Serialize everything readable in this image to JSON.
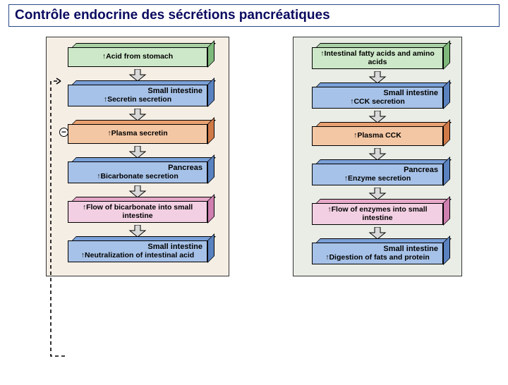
{
  "title": "Contrôle endocrine des sécrétions pancréatiques",
  "colors": {
    "green_t": "#a8d0a4",
    "green_f": "#cde8c8",
    "green_s": "#7fb97b",
    "blue_t": "#7aa0d8",
    "blue_f": "#a7c2e8",
    "blue_s": "#5a82c0",
    "orange_t": "#e8a070",
    "orange_f": "#f4c7a4",
    "orange_s": "#d07a48",
    "pink_t": "#e6a8c8",
    "pink_f": "#f2cfe2",
    "pink_s": "#cf7fb0",
    "arrow": "#d9d9d9",
    "panel_left_bg": "#f5eee5",
    "panel_right_bg": "#e9ede6",
    "title_border": "#2a4a8a",
    "title_text": "#0a0a60"
  },
  "left": [
    {
      "color": "green",
      "header": "",
      "body": "↑Acid from stomach"
    },
    {
      "color": "blue",
      "header": "Small intestine",
      "body": "↑Secretin secretion"
    },
    {
      "color": "orange",
      "header": "",
      "body": "↑Plasma secretin"
    },
    {
      "color": "blue",
      "header": "Pancreas",
      "body": "↑Bicarbonate secretion"
    },
    {
      "color": "pink",
      "header": "",
      "body": "↑Flow of bicarbonate into small intestine"
    },
    {
      "color": "blue",
      "header": "Small intestine",
      "body": "↑Neutralization of intestinal acid"
    }
  ],
  "right": [
    {
      "color": "green",
      "header": "",
      "body": "↑Intestinal fatty acids and amino acids"
    },
    {
      "color": "blue",
      "header": "Small intestine",
      "body": "↑CCK secretion"
    },
    {
      "color": "orange",
      "header": "",
      "body": "↑Plasma CCK"
    },
    {
      "color": "blue",
      "header": "Pancreas",
      "body": "↑Enzyme secretion"
    },
    {
      "color": "pink",
      "header": "",
      "body": "↑Flow of enzymes into small intestine"
    },
    {
      "color": "blue",
      "header": "Small intestine",
      "body": "↑Digestion of fats and protein"
    }
  ],
  "feedback_label": "−"
}
